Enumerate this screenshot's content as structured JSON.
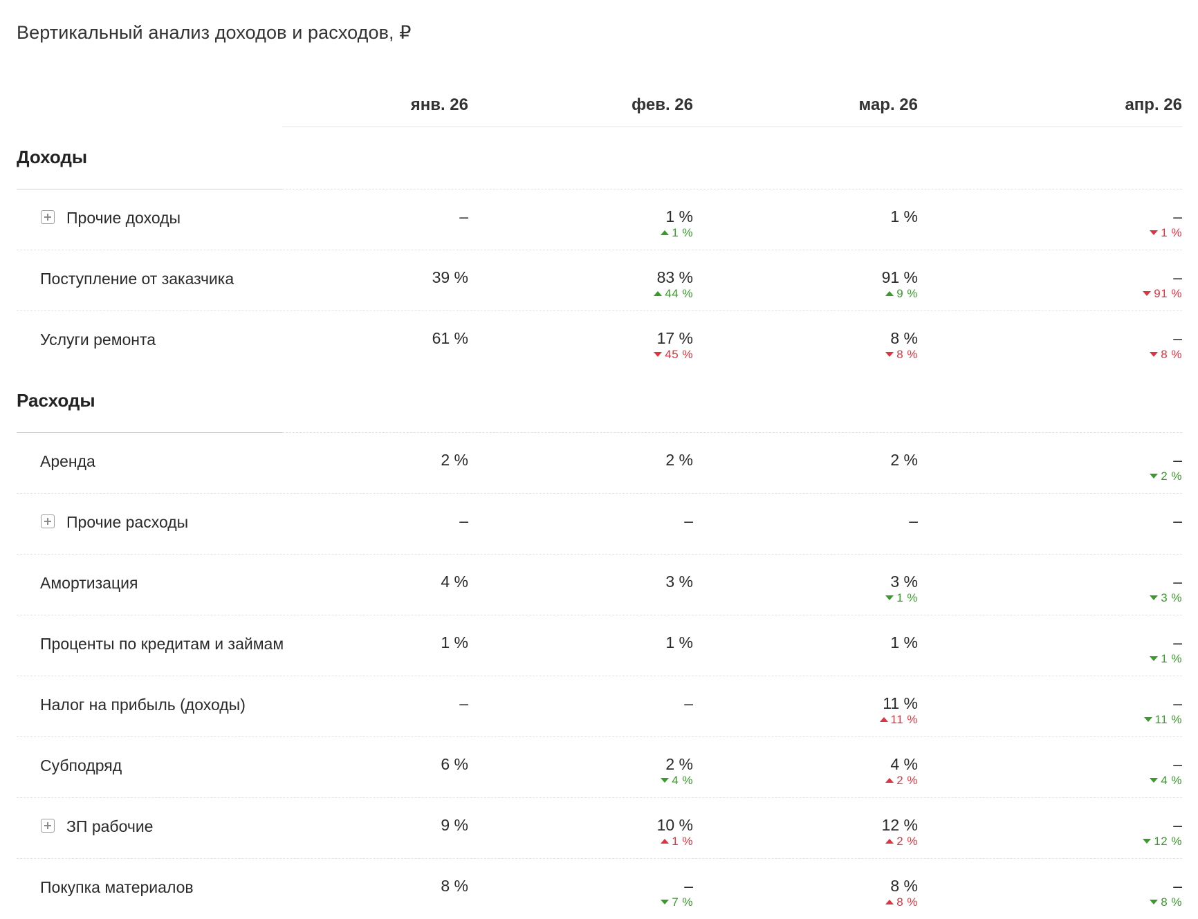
{
  "title": "Вертикальный анализ доходов и расходов, ₽",
  "columns": [
    "янв. 26",
    "фев. 26",
    "мар. 26",
    "апр. 26"
  ],
  "sections": {
    "income": {
      "title": "Доходы",
      "rows": [
        {
          "label": "Прочие доходы",
          "values": [
            "–",
            "1 %",
            "1 %",
            "–"
          ],
          "deltas": [
            "",
            "1 %",
            "",
            "1 %"
          ],
          "dirs": [
            "",
            "up",
            "",
            "down"
          ],
          "colors": [
            "",
            "green",
            "",
            "red"
          ]
        },
        {
          "label": "Поступление от заказчика",
          "values": [
            "39 %",
            "83 %",
            "91 %",
            "–"
          ],
          "deltas": [
            "",
            "44 %",
            "9 %",
            "91 %"
          ],
          "dirs": [
            "",
            "up",
            "up",
            "down"
          ],
          "colors": [
            "",
            "green",
            "green",
            "red"
          ]
        },
        {
          "label": "Услуги ремонта",
          "values": [
            "61 %",
            "17 %",
            "8 %",
            "–"
          ],
          "deltas": [
            "",
            "45 %",
            "8 %",
            "8 %"
          ],
          "dirs": [
            "",
            "down",
            "down",
            "down"
          ],
          "colors": [
            "",
            "red",
            "red",
            "red"
          ]
        }
      ]
    },
    "expense": {
      "title": "Расходы",
      "rows": [
        {
          "label": "Аренда",
          "values": [
            "2 %",
            "2 %",
            "2 %",
            "–"
          ],
          "deltas": [
            "",
            "",
            "",
            "2 %"
          ],
          "dirs": [
            "",
            "",
            "",
            "down"
          ],
          "colors": [
            "",
            "",
            "",
            "green"
          ]
        },
        {
          "label": "Прочие расходы",
          "values": [
            "–",
            "–",
            "–",
            "–"
          ],
          "deltas": [
            "",
            "",
            "",
            ""
          ],
          "dirs": [
            "",
            "",
            "",
            ""
          ],
          "colors": [
            "",
            "",
            "",
            ""
          ]
        },
        {
          "label": "Амортизация",
          "values": [
            "4 %",
            "3 %",
            "3 %",
            "–"
          ],
          "deltas": [
            "",
            "",
            "1 %",
            "3 %"
          ],
          "dirs": [
            "",
            "",
            "down",
            "down"
          ],
          "colors": [
            "",
            "",
            "green",
            "green"
          ]
        },
        {
          "label": "Проценты по кредитам и займам",
          "values": [
            "1 %",
            "1 %",
            "1 %",
            "–"
          ],
          "deltas": [
            "",
            "",
            "",
            "1 %"
          ],
          "dirs": [
            "",
            "",
            "",
            "down"
          ],
          "colors": [
            "",
            "",
            "",
            "green"
          ]
        },
        {
          "label": "Налог на прибыль (доходы)",
          "values": [
            "–",
            "–",
            "11 %",
            "–"
          ],
          "deltas": [
            "",
            "",
            "11 %",
            "11 %"
          ],
          "dirs": [
            "",
            "",
            "up",
            "down"
          ],
          "colors": [
            "",
            "",
            "red",
            "green"
          ]
        },
        {
          "label": "Субподряд",
          "values": [
            "6 %",
            "2 %",
            "4 %",
            "–"
          ],
          "deltas": [
            "",
            "4 %",
            "2 %",
            "4 %"
          ],
          "dirs": [
            "",
            "down",
            "up",
            "down"
          ],
          "colors": [
            "",
            "green",
            "red",
            "green"
          ]
        },
        {
          "label": "ЗП рабочие",
          "values": [
            "9 %",
            "10 %",
            "12 %",
            "–"
          ],
          "deltas": [
            "",
            "1 %",
            "2 %",
            "12 %"
          ],
          "dirs": [
            "",
            "up",
            "up",
            "down"
          ],
          "colors": [
            "",
            "red",
            "red",
            "green"
          ]
        },
        {
          "label": "Покупка материалов",
          "values": [
            "8 %",
            "–",
            "8 %",
            "–"
          ],
          "deltas": [
            "",
            "7 %",
            "8 %",
            "8 %"
          ],
          "dirs": [
            "",
            "down",
            "up",
            "down"
          ],
          "colors": [
            "",
            "green",
            "red",
            "green"
          ]
        }
      ]
    }
  }
}
